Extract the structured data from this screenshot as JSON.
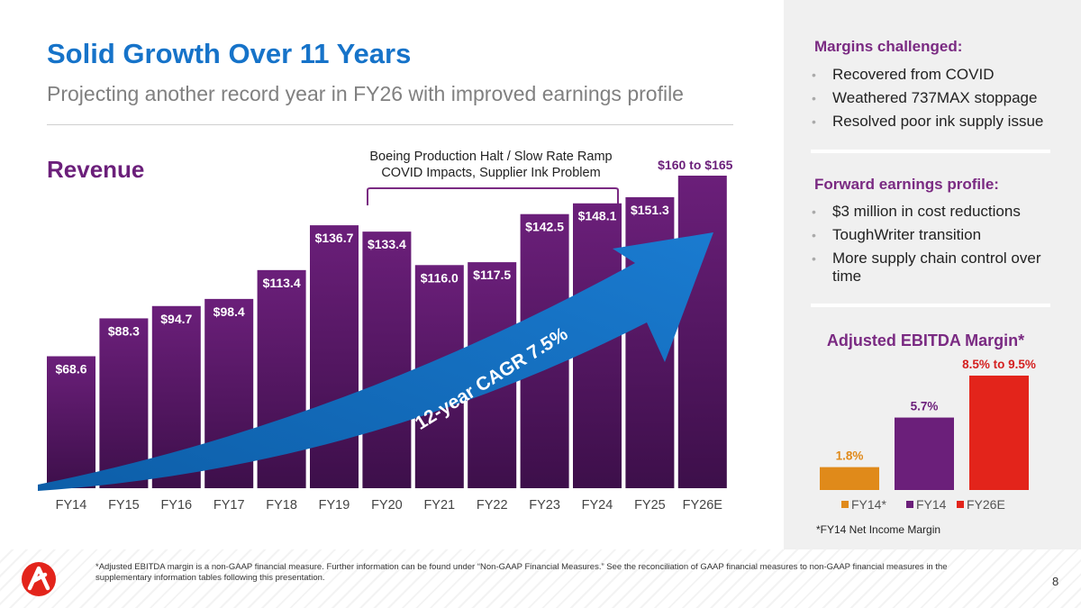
{
  "header": {
    "title": "Solid Growth Over 11 Years",
    "subtitle": "Projecting another record year in FY26 with improved earnings profile"
  },
  "revenue_label": "Revenue",
  "annotation": {
    "line1": "Boeing Production Halt / Slow Rate Ramp",
    "line2": "COVID Impacts, Supplier Ink Problem"
  },
  "cagr_label": "12-year CAGR 7.5%",
  "colors": {
    "title_blue": "#1673c9",
    "purple": "#6b1f7a",
    "purple_dark": "#3d0f4a",
    "arrow_blue": "#1672c4",
    "orange": "#e08a1a",
    "red": "#e3241b",
    "red_label": "#d42020"
  },
  "chart_data": [
    {
      "type": "bar",
      "title": "Revenue",
      "categories": [
        "FY14",
        "FY15",
        "FY16",
        "FY17",
        "FY18",
        "FY19",
        "FY20",
        "FY21",
        "FY22",
        "FY23",
        "FY24",
        "FY25",
        "FY26E"
      ],
      "values": [
        68.6,
        88.3,
        94.7,
        98.4,
        113.4,
        136.7,
        133.4,
        116.0,
        117.5,
        142.5,
        148.1,
        151.3,
        162.5
      ],
      "labels": [
        "$68.6",
        "$88.3",
        "$94.7",
        "$98.4",
        "$113.4",
        "$136.7",
        "$133.4",
        "$116.0",
        "$117.5",
        "$142.5",
        "$148.1",
        "$151.3",
        "$160 to $165"
      ],
      "ylim": [
        0,
        175
      ],
      "units": "$ millions"
    },
    {
      "type": "bar",
      "title": "Adjusted EBITDA Margin*",
      "categories": [
        "FY14*",
        "FY14",
        "FY26E"
      ],
      "values": [
        1.8,
        5.7,
        9.0
      ],
      "labels": [
        "1.8%",
        "5.7%",
        "8.5% to 9.5%"
      ],
      "legend": [
        "FY14*",
        "FY14",
        "FY26E"
      ],
      "legend_position": "bottom",
      "ylim": [
        0,
        10
      ]
    }
  ],
  "sidebar": {
    "margins_heading": "Margins challenged:",
    "margins_items": [
      "Recovered from COVID",
      "Weathered 737MAX stoppage",
      "Resolved poor ink supply issue"
    ],
    "forward_heading": "Forward earnings profile:",
    "forward_items": [
      "$3 million in cost reductions",
      "ToughWriter transition",
      "More supply chain control over time"
    ],
    "ebitda_title": "Adjusted EBITDA Margin*",
    "ebitda_note": "*FY14 Net Income Margin"
  },
  "footer": {
    "disclaimer": "*Adjusted EBITDA margin is a non-GAAP financial measure. Further information can be found under “Non-GAAP Financial Measures.” See the reconciliation of GAAP financial measures to non-GAAP financial measures in the supplementary information tables following this presentation.",
    "page_number": "8"
  }
}
